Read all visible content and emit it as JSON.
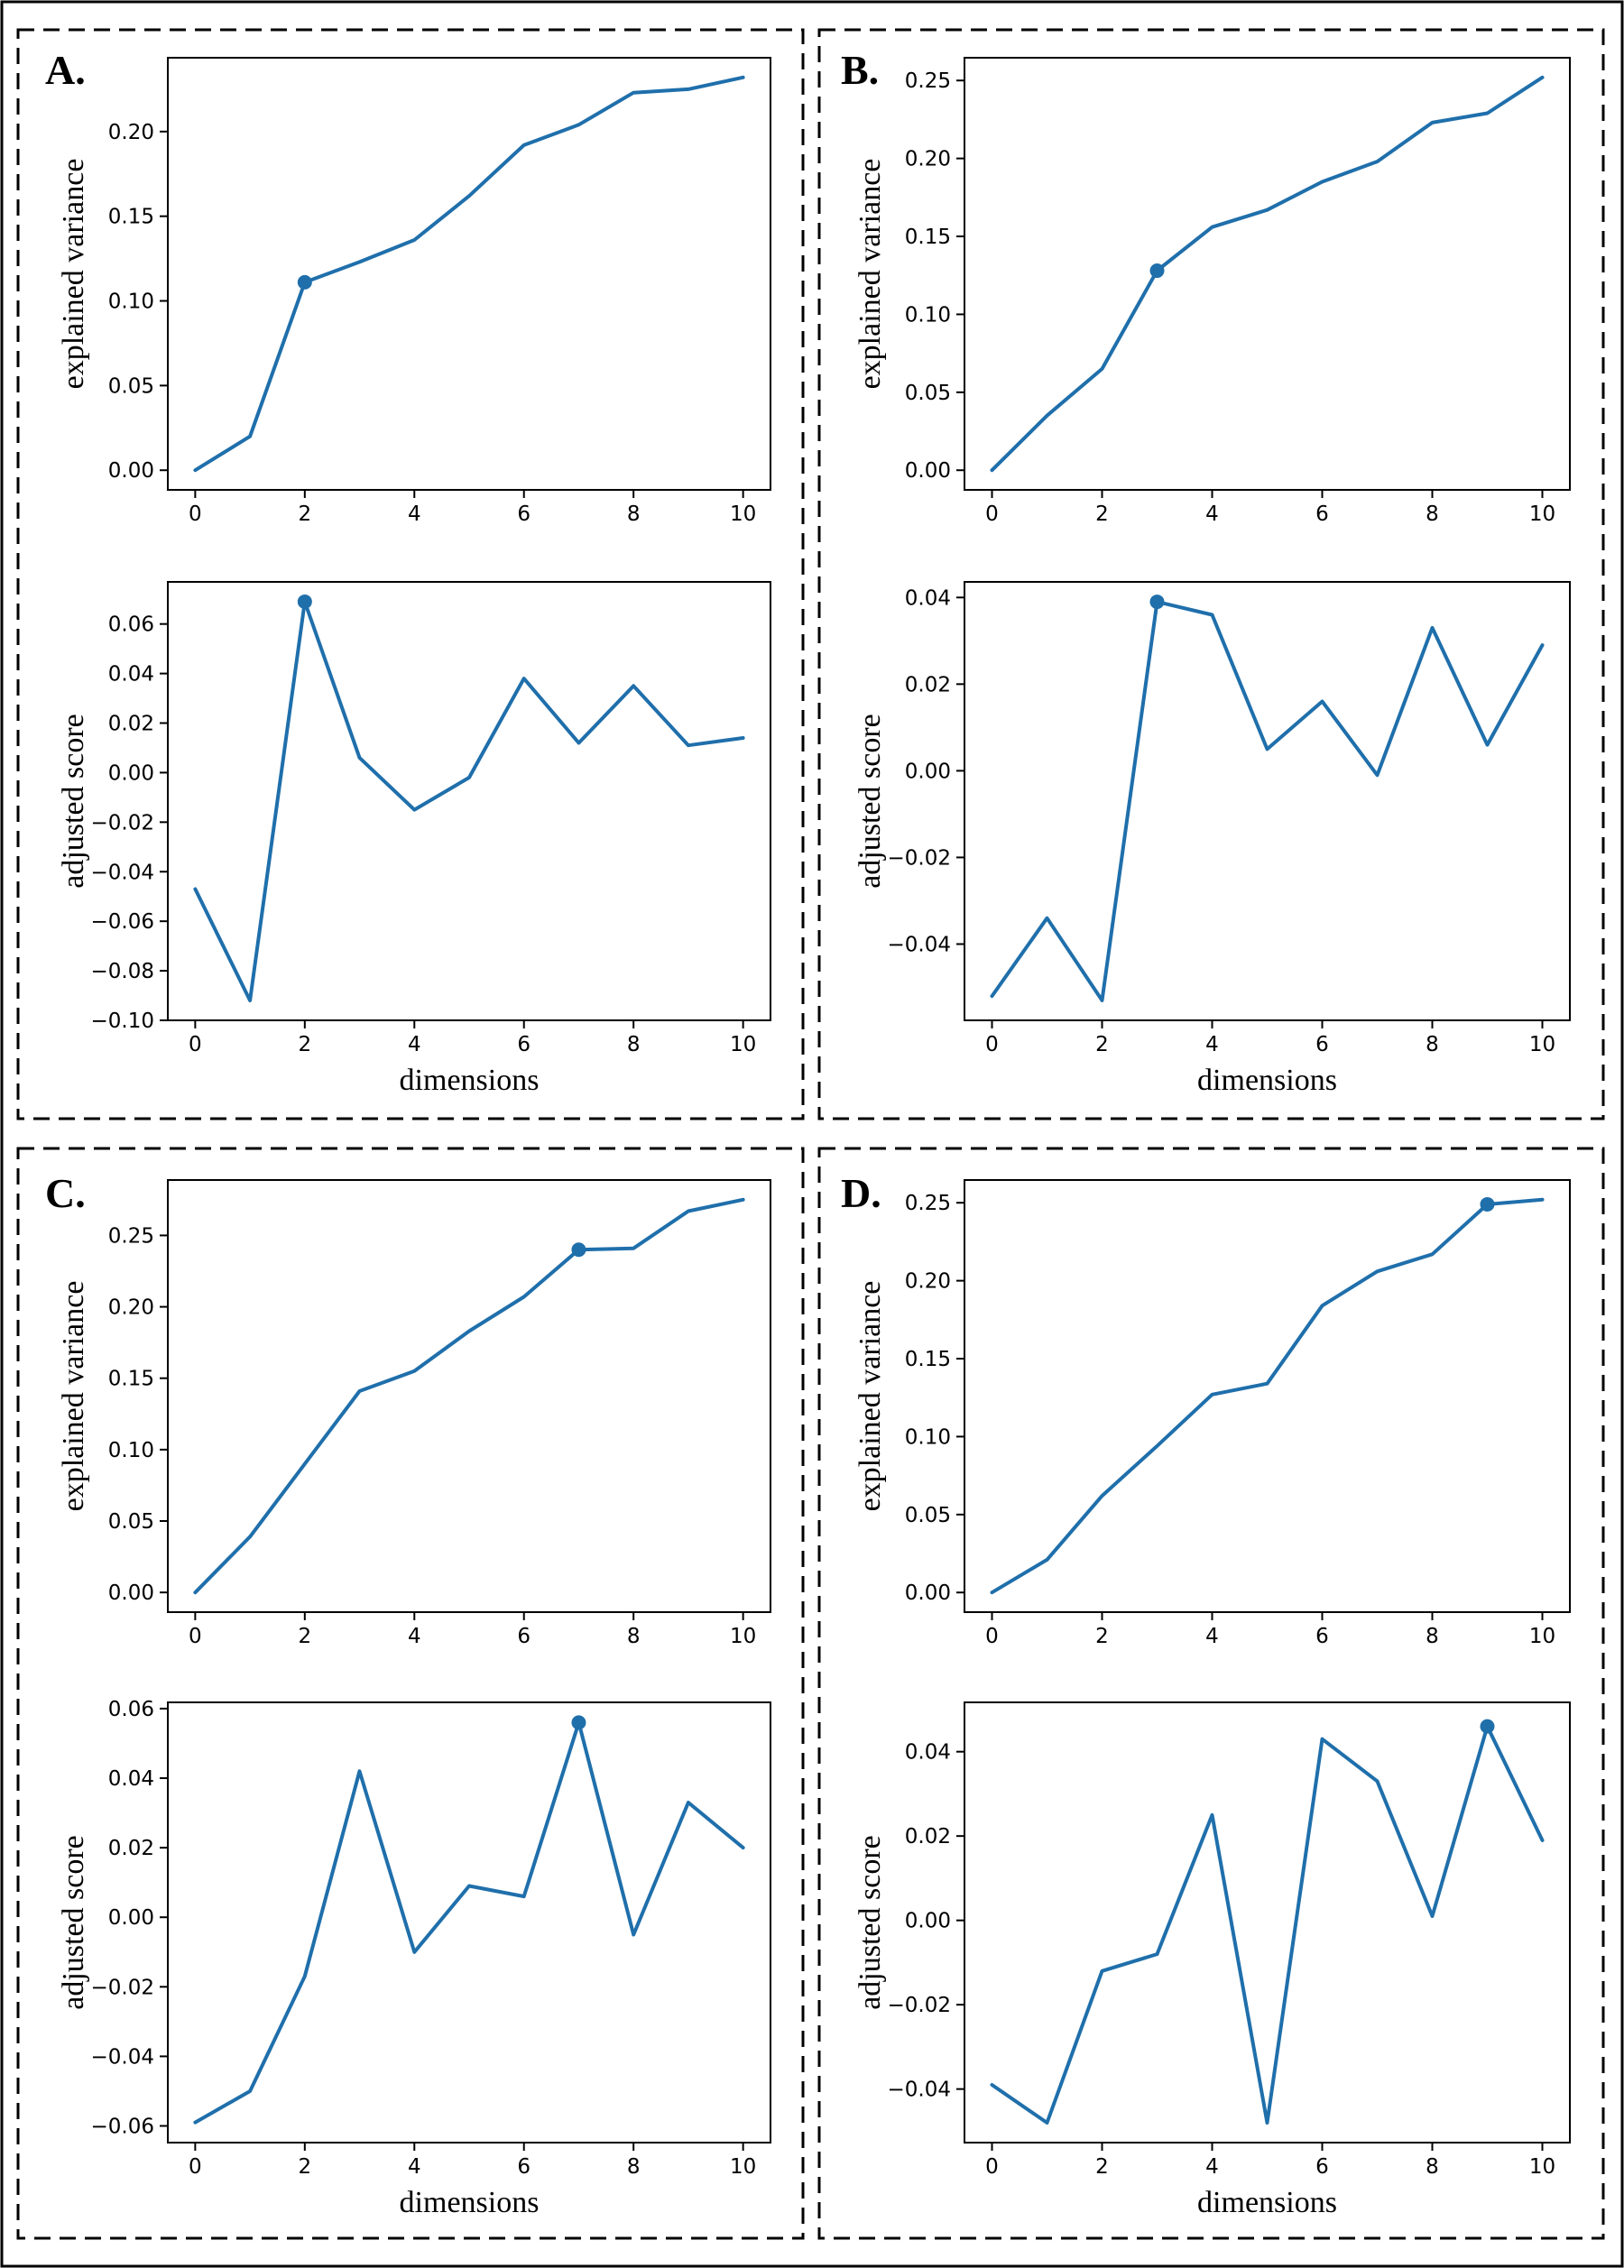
{
  "colors": {
    "line": "#1f6fab",
    "frame": "#000000",
    "background": "#ffffff"
  },
  "chart_data": [
    {
      "panel": "A.",
      "type": "line",
      "title": "",
      "xlabel": "",
      "ylabel": "explained variance",
      "x": [
        0,
        1,
        2,
        3,
        4,
        5,
        6,
        7,
        8,
        9,
        10
      ],
      "values": [
        0.0,
        0.02,
        0.111,
        0.123,
        0.136,
        0.162,
        0.192,
        0.204,
        0.223,
        0.225,
        0.232
      ],
      "highlight_index": 2,
      "xlim": [
        -0.5,
        10.5
      ],
      "ylim": [
        -0.0116,
        0.2436
      ],
      "xticks": [
        0,
        2,
        4,
        6,
        8,
        10
      ],
      "xtick_labels": [
        "0",
        "2",
        "4",
        "6",
        "8",
        "10"
      ],
      "yticks": [
        0.0,
        0.05,
        0.1,
        0.15,
        0.2
      ],
      "ytick_labels": [
        "0.00",
        "0.05",
        "0.10",
        "0.15",
        "0.20"
      ],
      "grid": false
    },
    {
      "panel": "",
      "type": "line",
      "title": "",
      "xlabel": "dimensions",
      "ylabel": "adjusted score",
      "x": [
        0,
        1,
        2,
        3,
        4,
        5,
        6,
        7,
        8,
        9,
        10
      ],
      "values": [
        -0.047,
        -0.092,
        0.069,
        0.006,
        -0.015,
        -0.002,
        0.038,
        0.012,
        0.035,
        0.011,
        0.014
      ],
      "highlight_index": 2,
      "xlim": [
        -0.5,
        10.5
      ],
      "ylim": [
        -0.1,
        0.077
      ],
      "xticks": [
        0,
        2,
        4,
        6,
        8,
        10
      ],
      "xtick_labels": [
        "0",
        "2",
        "4",
        "6",
        "8",
        "10"
      ],
      "yticks": [
        -0.1,
        -0.08,
        -0.06,
        -0.04,
        -0.02,
        0.0,
        0.02,
        0.04,
        0.06
      ],
      "ytick_labels": [
        "−0.10",
        "−0.08",
        "−0.06",
        "−0.04",
        "−0.02",
        "0.00",
        "0.02",
        "0.04",
        "0.06"
      ],
      "grid": false
    },
    {
      "panel": "B.",
      "type": "line",
      "title": "",
      "xlabel": "",
      "ylabel": "explained variance",
      "x": [
        0,
        1,
        2,
        3,
        4,
        5,
        6,
        7,
        8,
        9,
        10
      ],
      "values": [
        0.0,
        0.035,
        0.065,
        0.128,
        0.156,
        0.167,
        0.185,
        0.198,
        0.223,
        0.229,
        0.252
      ],
      "highlight_index": 3,
      "xlim": [
        -0.5,
        10.5
      ],
      "ylim": [
        -0.0126,
        0.2646
      ],
      "xticks": [
        0,
        2,
        4,
        6,
        8,
        10
      ],
      "xtick_labels": [
        "0",
        "2",
        "4",
        "6",
        "8",
        "10"
      ],
      "yticks": [
        0.0,
        0.05,
        0.1,
        0.15,
        0.2,
        0.25
      ],
      "ytick_labels": [
        "0.00",
        "0.05",
        "0.10",
        "0.15",
        "0.20",
        "0.25"
      ],
      "grid": false
    },
    {
      "panel": "",
      "type": "line",
      "title": "",
      "xlabel": "dimensions",
      "ylabel": "adjusted score",
      "x": [
        0,
        1,
        2,
        3,
        4,
        5,
        6,
        7,
        8,
        9,
        10
      ],
      "values": [
        -0.052,
        -0.034,
        -0.053,
        0.039,
        0.036,
        0.005,
        0.016,
        -0.001,
        0.033,
        0.006,
        0.029
      ],
      "highlight_index": 3,
      "xlim": [
        -0.5,
        10.5
      ],
      "ylim": [
        -0.0576,
        0.0436
      ],
      "xticks": [
        0,
        2,
        4,
        6,
        8,
        10
      ],
      "xtick_labels": [
        "0",
        "2",
        "4",
        "6",
        "8",
        "10"
      ],
      "yticks": [
        -0.04,
        -0.02,
        0.0,
        0.02,
        0.04
      ],
      "ytick_labels": [
        "−0.04",
        "−0.02",
        "0.00",
        "0.02",
        "0.04"
      ],
      "grid": false
    },
    {
      "panel": "C.",
      "type": "line",
      "title": "",
      "xlabel": "",
      "ylabel": "explained variance",
      "x": [
        0,
        1,
        2,
        3,
        4,
        5,
        6,
        7,
        8,
        9,
        10
      ],
      "values": [
        0.0,
        0.039,
        0.09,
        0.141,
        0.155,
        0.183,
        0.207,
        0.24,
        0.241,
        0.267,
        0.275
      ],
      "highlight_index": 7,
      "xlim": [
        -0.5,
        10.5
      ],
      "ylim": [
        -0.0138,
        0.2888
      ],
      "xticks": [
        0,
        2,
        4,
        6,
        8,
        10
      ],
      "xtick_labels": [
        "0",
        "2",
        "4",
        "6",
        "8",
        "10"
      ],
      "yticks": [
        0.0,
        0.05,
        0.1,
        0.15,
        0.2,
        0.25
      ],
      "ytick_labels": [
        "0.00",
        "0.05",
        "0.10",
        "0.15",
        "0.20",
        "0.25"
      ],
      "grid": false
    },
    {
      "panel": "",
      "type": "line",
      "title": "",
      "xlabel": "dimensions",
      "ylabel": "adjusted score",
      "x": [
        0,
        1,
        2,
        3,
        4,
        5,
        6,
        7,
        8,
        9,
        10
      ],
      "values": [
        -0.059,
        -0.05,
        -0.017,
        0.042,
        -0.01,
        0.009,
        0.006,
        0.056,
        -0.005,
        0.033,
        0.02
      ],
      "highlight_index": 7,
      "xlim": [
        -0.5,
        10.5
      ],
      "ylim": [
        -0.0648,
        0.0618
      ],
      "xticks": [
        0,
        2,
        4,
        6,
        8,
        10
      ],
      "xtick_labels": [
        "0",
        "2",
        "4",
        "6",
        "8",
        "10"
      ],
      "yticks": [
        -0.06,
        -0.04,
        -0.02,
        0.0,
        0.02,
        0.04,
        0.06
      ],
      "ytick_labels": [
        "−0.06",
        "−0.04",
        "−0.02",
        "0.00",
        "0.02",
        "0.04",
        "0.06"
      ],
      "grid": false
    },
    {
      "panel": "D.",
      "type": "line",
      "title": "",
      "xlabel": "",
      "ylabel": "explained variance",
      "x": [
        0,
        1,
        2,
        3,
        4,
        5,
        6,
        7,
        8,
        9,
        10
      ],
      "values": [
        0.0,
        0.021,
        0.062,
        0.094,
        0.127,
        0.134,
        0.184,
        0.206,
        0.217,
        0.249,
        0.252
      ],
      "highlight_index": 9,
      "xlim": [
        -0.5,
        10.5
      ],
      "ylim": [
        -0.0126,
        0.2646
      ],
      "xticks": [
        0,
        2,
        4,
        6,
        8,
        10
      ],
      "xtick_labels": [
        "0",
        "2",
        "4",
        "6",
        "8",
        "10"
      ],
      "yticks": [
        0.0,
        0.05,
        0.1,
        0.15,
        0.2,
        0.25
      ],
      "ytick_labels": [
        "0.00",
        "0.05",
        "0.10",
        "0.15",
        "0.20",
        "0.25"
      ],
      "grid": false
    },
    {
      "panel": "",
      "type": "line",
      "title": "",
      "xlabel": "dimensions",
      "ylabel": "adjusted score",
      "x": [
        0,
        1,
        2,
        3,
        4,
        5,
        6,
        7,
        8,
        9,
        10
      ],
      "values": [
        -0.039,
        -0.048,
        -0.012,
        -0.008,
        0.025,
        -0.048,
        0.043,
        0.033,
        0.001,
        0.046,
        0.019
      ],
      "highlight_index": 9,
      "xlim": [
        -0.5,
        10.5
      ],
      "ylim": [
        -0.0527,
        0.0517
      ],
      "xticks": [
        0,
        2,
        4,
        6,
        8,
        10
      ],
      "xtick_labels": [
        "0",
        "2",
        "4",
        "6",
        "8",
        "10"
      ],
      "yticks": [
        -0.04,
        -0.02,
        0.0,
        0.02,
        0.04
      ],
      "ytick_labels": [
        "−0.04",
        "−0.02",
        "0.00",
        "0.02",
        "0.04"
      ],
      "grid": false
    }
  ]
}
